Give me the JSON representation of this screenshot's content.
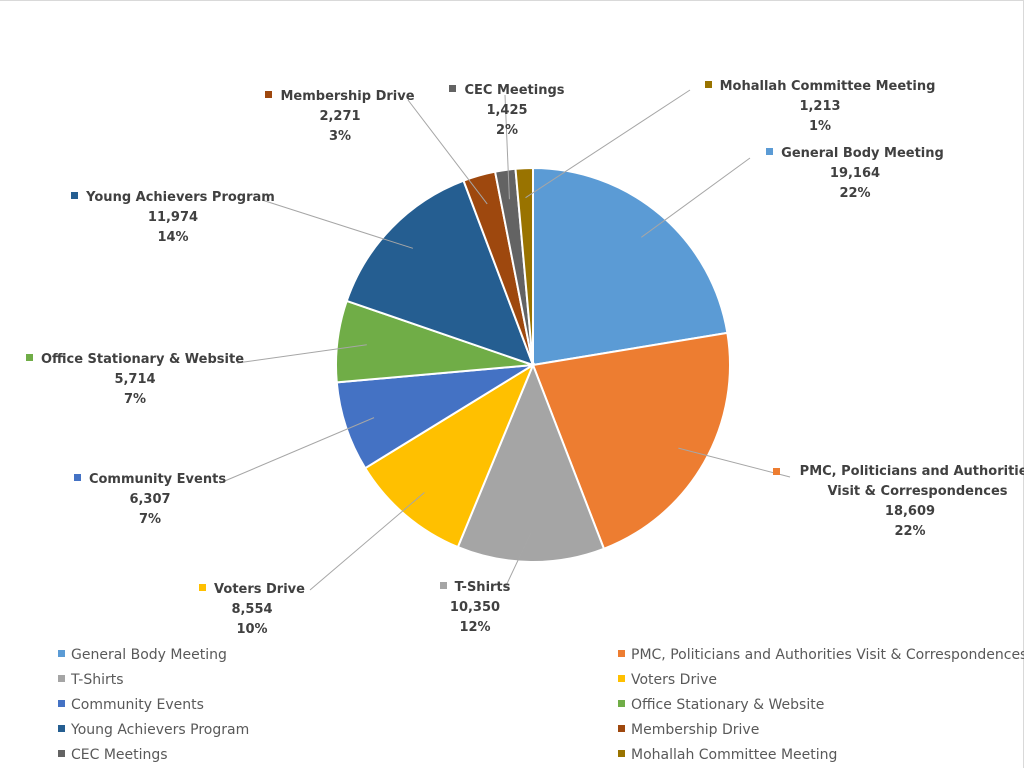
{
  "chart_data": {
    "type": "pie",
    "categories": [
      "General Body Meeting",
      "PMC, Politicians and Authorities Visit & Correspondences",
      "T-Shirts",
      "Voters Drive",
      "Community Events",
      "Office Stationary & Website",
      "Young Achievers Program",
      "Membership Drive",
      "CEC Meetings",
      "Mohallah Committee Meeting"
    ],
    "values": [
      19164,
      18609,
      10350,
      8554,
      6307,
      5714,
      11974,
      2271,
      1425,
      1213
    ],
    "value_labels": [
      "19,164",
      "18,609",
      "10,350",
      "8,554",
      "6,307",
      "5,714",
      "11,974",
      "2,271",
      "1,425",
      "1,213"
    ],
    "percent_labels": [
      "22%",
      "22%",
      "12%",
      "10%",
      "7%",
      "7%",
      "14%",
      "3%",
      "2%",
      "1%"
    ],
    "colors": [
      "#5b9bd5",
      "#ed7d31",
      "#a5a5a5",
      "#ffc000",
      "#4472c4",
      "#70ad47",
      "#255e91",
      "#9e480e",
      "#636363",
      "#997300"
    ],
    "legend": "bottom"
  }
}
